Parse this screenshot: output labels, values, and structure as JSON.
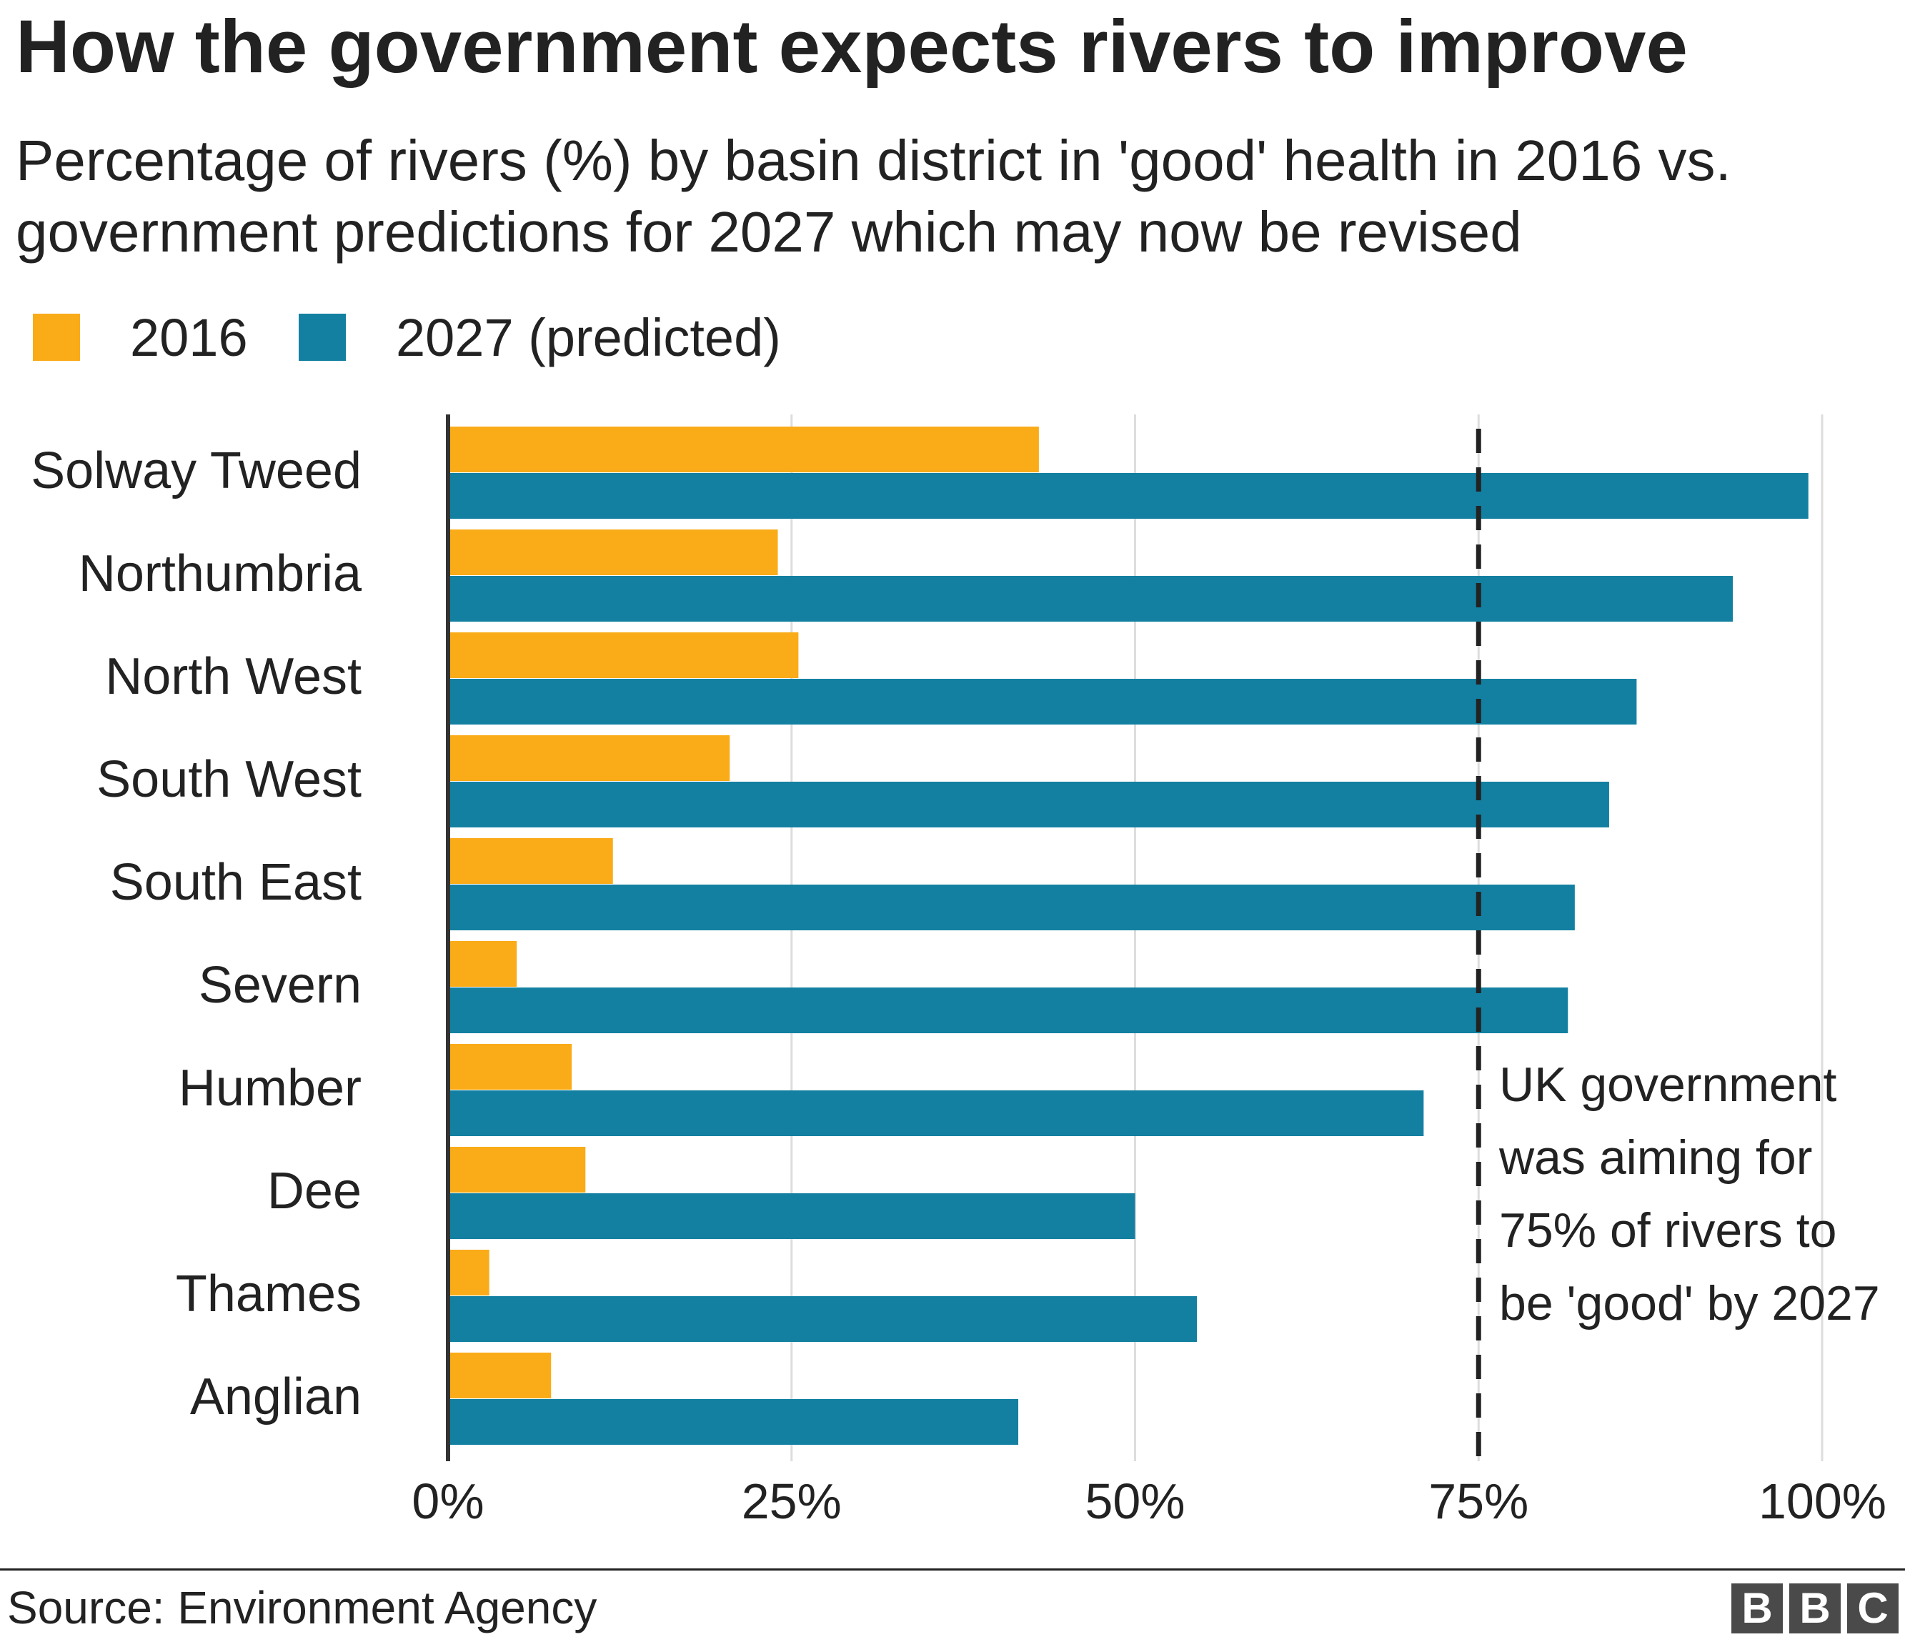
{
  "chart_data": {
    "type": "bar",
    "orientation": "horizontal",
    "title": "How the government expects rivers to improve",
    "subtitle": "Percentage of rivers (%) by basin district in 'good' health in 2016 vs. government predictions for 2027 which may now be revised",
    "categories": [
      "Solway Tweed",
      "Northumbria",
      "North West",
      "South West",
      "South East",
      "Severn",
      "Humber",
      "Dee",
      "Thames",
      "Anglian"
    ],
    "series": [
      {
        "name": "2016",
        "color": "#faab18",
        "values": [
          43,
          24,
          25.5,
          20.5,
          12,
          5,
          9,
          10,
          3,
          7.5
        ]
      },
      {
        "name": "2027 (predicted)",
        "color": "#1380a1",
        "values": [
          99,
          93.5,
          86.5,
          84.5,
          82,
          81.5,
          71,
          50,
          54.5,
          41.5
        ]
      }
    ],
    "xlim": [
      0,
      100
    ],
    "xticks": [
      "0%",
      "25%",
      "50%",
      "75%",
      "100%"
    ],
    "xtick_values": [
      0,
      25,
      50,
      75,
      100
    ],
    "grid": "vertical",
    "legend_position": "top-left",
    "reference_line": {
      "value": 75,
      "style": "dashed",
      "annotation": [
        "UK government",
        "was aiming for",
        "75% of rivers to",
        "be 'good' by 2027"
      ]
    },
    "source": "Source: Environment Agency"
  },
  "branding": {
    "logo_letters": [
      "B",
      "B",
      "C"
    ]
  }
}
